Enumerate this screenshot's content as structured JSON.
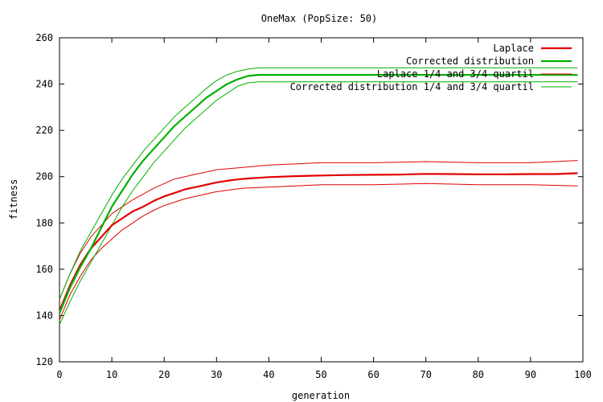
{
  "chart_data": {
    "type": "line",
    "title": "OneMax (PopSize: 50)",
    "xlabel": "generation",
    "ylabel": "fitness",
    "xlim": [
      0,
      100
    ],
    "ylim": [
      120,
      260
    ],
    "xticks": [
      0,
      10,
      20,
      30,
      40,
      50,
      60,
      70,
      80,
      90,
      100
    ],
    "yticks": [
      120,
      140,
      160,
      180,
      200,
      220,
      240,
      260
    ],
    "legend_position": "top-right",
    "grid": false,
    "series": [
      {
        "name": "Laplace",
        "color": "#e00000",
        "width": 2.2,
        "x": [
          0,
          2,
          4,
          6,
          8,
          10,
          12,
          14,
          16,
          18,
          20,
          22,
          24,
          26,
          28,
          30,
          32,
          34,
          36,
          38,
          40,
          45,
          50,
          55,
          60,
          65,
          70,
          75,
          80,
          85,
          90,
          95,
          99
        ],
        "y": [
          142,
          153,
          162,
          169,
          174,
          179,
          182,
          185,
          187,
          189.5,
          191.5,
          193,
          194.5,
          195.5,
          196.5,
          197.5,
          198.2,
          198.8,
          199.2,
          199.5,
          199.8,
          200.2,
          200.5,
          200.7,
          200.8,
          200.9,
          201.2,
          201.1,
          201.0,
          201.0,
          201.1,
          201.1,
          201.5
        ]
      },
      {
        "name": "Corrected distribution",
        "color": "#00b000",
        "width": 2.2,
        "x": [
          0,
          2,
          4,
          6,
          8,
          10,
          12,
          14,
          16,
          18,
          20,
          22,
          24,
          26,
          28,
          30,
          32,
          34,
          36,
          38,
          40,
          45,
          50,
          60,
          70,
          80,
          90,
          99
        ],
        "y": [
          141,
          152,
          161,
          169,
          178,
          187,
          194,
          201,
          207,
          212,
          217,
          222,
          226,
          230,
          234,
          237,
          240,
          242,
          243.5,
          244,
          244,
          244,
          244,
          244,
          244,
          244,
          244,
          244
        ]
      },
      {
        "name": "Laplace 1/4 and 3/4 quartil",
        "color": "#e00000",
        "width": 1,
        "bands": [
          {
            "x": [
              0,
              2,
              4,
              6,
              8,
              10,
              12,
              14,
              16,
              18,
              20,
              22,
              24,
              26,
              28,
              30,
              35,
              40,
              45,
              50,
              60,
              70,
              80,
              90,
              99
            ],
            "y": [
              147,
              158,
              167,
              174,
              179,
              184,
              187,
              190,
              192.5,
              195,
              197,
              199,
              200,
              201,
              202,
              203,
              204,
              205,
              205.5,
              206,
              206,
              206.5,
              206,
              206,
              207
            ]
          },
          {
            "x": [
              0,
              2,
              4,
              6,
              8,
              10,
              12,
              14,
              16,
              18,
              20,
              22,
              24,
              26,
              28,
              30,
              35,
              40,
              45,
              50,
              60,
              70,
              80,
              90,
              99
            ],
            "y": [
              138,
              149,
              157,
              164,
              169,
              173,
              177,
              180,
              183,
              185.5,
              187.5,
              189,
              190.5,
              191.5,
              192.5,
              193.5,
              195,
              195.5,
              196,
              196.5,
              196.5,
              197,
              196.5,
              196.5,
              196
            ]
          }
        ]
      },
      {
        "name": "Corrected distribution 1/4 and 3/4 quartil",
        "color": "#00b000",
        "width": 1,
        "bands": [
          {
            "x": [
              0,
              2,
              4,
              6,
              8,
              10,
              12,
              14,
              16,
              18,
              20,
              22,
              24,
              26,
              28,
              30,
              32,
              34,
              36,
              38,
              40,
              50,
              60,
              70,
              80,
              90,
              99
            ],
            "y": [
              147,
              158,
              168,
              176,
              184,
              192,
              199,
              205,
              211,
              216,
              221,
              226,
              230,
              234,
              238,
              241.5,
              244,
              245.5,
              246.5,
              247,
              247,
              247,
              247,
              247,
              247,
              247,
              247
            ]
          },
          {
            "x": [
              0,
              2,
              4,
              6,
              8,
              10,
              12,
              14,
              16,
              18,
              20,
              22,
              24,
              26,
              28,
              30,
              32,
              34,
              36,
              38,
              40,
              50,
              60,
              70,
              80,
              90,
              99
            ],
            "y": [
              136,
              146,
              155,
              163,
              171,
              179,
              187,
              194,
              200,
              206,
              211,
              216,
              221,
              225,
              229,
              233,
              236,
              239,
              240.5,
              241,
              241,
              241,
              241,
              241,
              241,
              241,
              241
            ]
          }
        ]
      }
    ]
  }
}
